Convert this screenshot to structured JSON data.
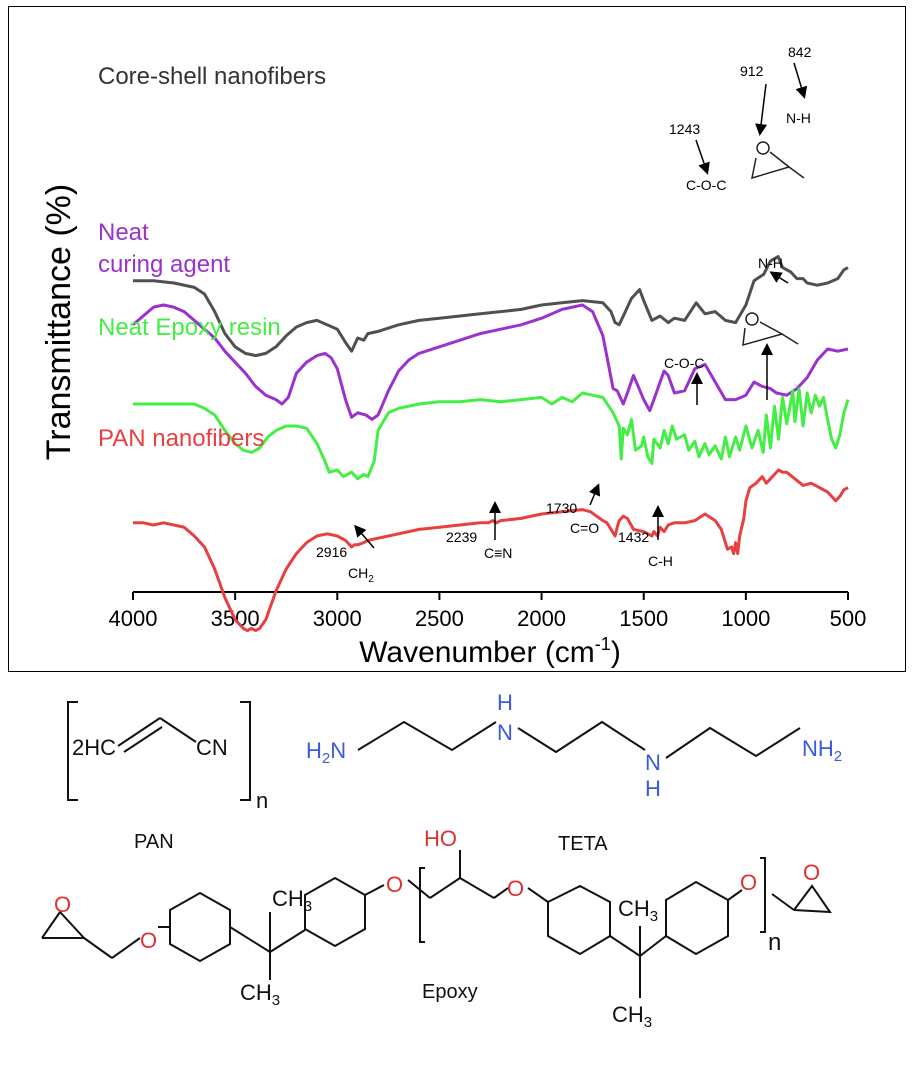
{
  "chart_data": {
    "type": "line",
    "ylabel": "Transmittance (%)",
    "xlabel_main": "Wavenumber (cm",
    "xlabel_sup": "-1",
    "xlabel_close": ")",
    "xlim": [
      4000,
      500
    ],
    "x_reversed": true,
    "xticks": [
      "4000",
      "3500",
      "3000",
      "2500",
      "2000",
      "1500",
      "1000",
      "500"
    ],
    "xtick_values": [
      4000,
      3500,
      3000,
      2500,
      2000,
      1500,
      1000,
      500
    ],
    "series": [
      {
        "name": "Core-shell nanofibers",
        "color": "#505050",
        "x": [
          4000,
          3900,
          3800,
          3700,
          3650,
          3600,
          3550,
          3500,
          3450,
          3400,
          3350,
          3300,
          3250,
          3200,
          3150,
          3100,
          3050,
          3000,
          2960,
          2930,
          2900,
          2870,
          2850,
          2800,
          2700,
          2600,
          2500,
          2400,
          2300,
          2200,
          2100,
          2000,
          1900,
          1800,
          1700,
          1660,
          1640,
          1620,
          1600,
          1560,
          1520,
          1500,
          1460,
          1420,
          1380,
          1350,
          1300,
          1243,
          1200,
          1150,
          1100,
          1050,
          1000,
          960,
          912,
          880,
          842,
          820,
          780,
          750,
          720,
          700,
          650,
          600,
          550,
          520,
          500
        ],
        "y": [
          8.6,
          8.6,
          8.5,
          8.3,
          8.0,
          7.2,
          6.2,
          5.6,
          5.3,
          5.2,
          5.3,
          5.6,
          6.1,
          6.5,
          6.7,
          6.8,
          6.6,
          6.4,
          5.8,
          5.4,
          6.0,
          5.9,
          6.2,
          6.3,
          6.6,
          6.8,
          6.9,
          7.0,
          7.1,
          7.2,
          7.3,
          7.5,
          7.6,
          7.7,
          7.6,
          7.2,
          6.7,
          6.6,
          7.0,
          7.8,
          8.2,
          7.7,
          6.8,
          7.0,
          6.7,
          6.9,
          6.8,
          7.6,
          7.1,
          7.2,
          6.8,
          6.7,
          7.5,
          8.6,
          8.9,
          9.5,
          9.7,
          9.2,
          9.0,
          8.7,
          8.7,
          8.5,
          8.4,
          8.5,
          8.7,
          9.1,
          9.2
        ],
        "label": "Core-shell nanofibers",
        "label_color": "#333333"
      },
      {
        "name": "Neat curing agent",
        "color": "#9a32cd",
        "x": [
          4000,
          3950,
          3900,
          3850,
          3800,
          3750,
          3700,
          3650,
          3600,
          3550,
          3500,
          3450,
          3400,
          3350,
          3300,
          3270,
          3240,
          3200,
          3150,
          3100,
          3060,
          3030,
          3000,
          2960,
          2930,
          2900,
          2860,
          2830,
          2800,
          2750,
          2700,
          2650,
          2600,
          2500,
          2400,
          2300,
          2200,
          2100,
          2000,
          1900,
          1800,
          1750,
          1700,
          1650,
          1630,
          1600,
          1580,
          1550,
          1500,
          1470,
          1450,
          1420,
          1400,
          1380,
          1350,
          1300,
          1250,
          1200,
          1150,
          1100,
          1050,
          1000,
          960,
          920,
          880,
          850,
          800,
          750,
          700,
          650,
          600,
          550,
          500
        ],
        "y": [
          6.6,
          7.0,
          7.4,
          7.5,
          7.4,
          7.2,
          6.8,
          6.4,
          6.0,
          5.4,
          4.9,
          4.4,
          3.8,
          3.4,
          3.2,
          3.0,
          3.3,
          4.4,
          4.9,
          5.2,
          5.3,
          5.1,
          4.6,
          3.2,
          2.4,
          2.6,
          2.5,
          2.3,
          2.5,
          3.6,
          4.5,
          5.0,
          5.3,
          5.6,
          5.9,
          6.2,
          6.4,
          6.6,
          6.9,
          7.3,
          7.5,
          7.2,
          6.1,
          3.7,
          3.6,
          3.0,
          3.5,
          4.3,
          3.2,
          2.7,
          3.2,
          4.0,
          4.5,
          4.3,
          3.5,
          3.6,
          4.6,
          4.8,
          4.0,
          3.2,
          3.2,
          3.4,
          4.0,
          3.8,
          3.7,
          3.5,
          3.4,
          3.7,
          4.2,
          5.0,
          5.5,
          5.4,
          5.5
        ],
        "label_lines": [
          "Neat",
          "curing agent"
        ],
        "label_color": "#9a32cd"
      },
      {
        "name": "Neat Epoxy resin",
        "color": "#44ee44",
        "x": [
          4000,
          3900,
          3800,
          3700,
          3650,
          3600,
          3550,
          3500,
          3460,
          3420,
          3380,
          3340,
          3300,
          3250,
          3200,
          3150,
          3100,
          3060,
          3040,
          3000,
          2970,
          2930,
          2900,
          2870,
          2850,
          2820,
          2800,
          2750,
          2700,
          2650,
          2600,
          2500,
          2400,
          2300,
          2200,
          2100,
          2000,
          1950,
          1900,
          1850,
          1800,
          1750,
          1700,
          1650,
          1620,
          1610,
          1600,
          1580,
          1560,
          1540,
          1510,
          1500,
          1480,
          1460,
          1450,
          1420,
          1400,
          1380,
          1360,
          1340,
          1300,
          1280,
          1250,
          1230,
          1200,
          1180,
          1150,
          1120,
          1100,
          1080,
          1050,
          1030,
          1000,
          970,
          940,
          915,
          900,
          880,
          860,
          840,
          820,
          800,
          770,
          760,
          740,
          720,
          700,
          680,
          660,
          640,
          620,
          600,
          580,
          560,
          540,
          520,
          500
        ],
        "y": [
          3.0,
          3.0,
          3.0,
          3.0,
          2.8,
          2.5,
          1.8,
          1.2,
          0.9,
          0.8,
          1.0,
          1.5,
          1.8,
          2.0,
          2.0,
          1.9,
          1.2,
          0.4,
          -0.1,
          0.0,
          -0.3,
          -0.1,
          -0.4,
          -0.2,
          -0.3,
          0.4,
          1.8,
          2.6,
          2.8,
          2.9,
          3.0,
          3.1,
          3.1,
          3.2,
          3.1,
          3.2,
          3.3,
          3.0,
          3.3,
          3.1,
          3.5,
          3.4,
          3.3,
          2.6,
          2.0,
          0.5,
          1.9,
          1.6,
          2.3,
          0.9,
          1.1,
          1.5,
          0.6,
          0.3,
          1.4,
          1.0,
          1.8,
          1.2,
          2.0,
          1.4,
          1.6,
          0.9,
          1.3,
          0.6,
          1.2,
          0.7,
          1.1,
          0.5,
          1.5,
          0.6,
          1.5,
          0.9,
          2.0,
          1.0,
          1.8,
          0.8,
          2.5,
          1.0,
          2.9,
          1.4,
          3.3,
          2.1,
          3.6,
          2.2,
          3.7,
          2.0,
          3.5,
          2.6,
          3.4,
          2.9,
          3.3,
          2.3,
          1.4,
          1.0,
          1.6,
          2.6,
          3.2
        ],
        "label": "Neat Epoxy resin",
        "label_color": "#44ee44"
      },
      {
        "name": "PAN nanofibers",
        "color": "#e84040",
        "x": [
          4000,
          3950,
          3900,
          3850,
          3800,
          3750,
          3700,
          3650,
          3600,
          3550,
          3500,
          3460,
          3440,
          3420,
          3400,
          3380,
          3350,
          3300,
          3250,
          3200,
          3150,
          3100,
          3050,
          3000,
          2960,
          2930,
          2916,
          2900,
          2870,
          2850,
          2800,
          2700,
          2600,
          2500,
          2400,
          2300,
          2260,
          2239,
          2220,
          2200,
          2100,
          2000,
          1900,
          1800,
          1760,
          1730,
          1700,
          1680,
          1660,
          1640,
          1630,
          1620,
          1600,
          1580,
          1550,
          1500,
          1460,
          1450,
          1432,
          1420,
          1400,
          1380,
          1350,
          1300,
          1250,
          1200,
          1150,
          1120,
          1100,
          1090,
          1070,
          1060,
          1050,
          1040,
          1030,
          1010,
          1000,
          980,
          950,
          920,
          900,
          880,
          860,
          840,
          820,
          800,
          760,
          720,
          680,
          640,
          600,
          560,
          540,
          520,
          500
        ],
        "y": [
          -2.4,
          -2.4,
          -2.5,
          -2.4,
          -2.5,
          -2.6,
          -3.0,
          -3.5,
          -4.5,
          -5.8,
          -6.8,
          -7.2,
          -7.3,
          -7.2,
          -7.3,
          -7.2,
          -6.8,
          -5.5,
          -4.5,
          -3.8,
          -3.3,
          -3.0,
          -2.9,
          -3.0,
          -3.2,
          -3.5,
          -3.4,
          -3.4,
          -3.3,
          -3.2,
          -3.1,
          -2.9,
          -2.7,
          -2.6,
          -2.5,
          -2.4,
          -2.4,
          -2.3,
          -2.4,
          -2.3,
          -2.2,
          -2.0,
          -1.9,
          -1.8,
          -1.9,
          -2.1,
          -2.3,
          -2.4,
          -2.7,
          -3.0,
          -2.6,
          -2.3,
          -2.1,
          -2.2,
          -2.7,
          -2.8,
          -3.0,
          -2.8,
          -3.0,
          -2.6,
          -2.8,
          -2.5,
          -2.4,
          -2.4,
          -2.3,
          -2.0,
          -2.3,
          -2.7,
          -3.3,
          -3.6,
          -3.5,
          -3.8,
          -3.3,
          -3.8,
          -3.0,
          -2.2,
          -1.4,
          -0.8,
          -0.6,
          -0.3,
          -0.6,
          -0.4,
          -0.2,
          0.0,
          -0.1,
          -0.1,
          -0.4,
          -0.7,
          -0.6,
          -0.8,
          -1.0,
          -1.4,
          -1.2,
          -0.9,
          -0.8
        ],
        "label": "PAN nanofibers",
        "label_color": "#e84040"
      }
    ],
    "annotations": [
      {
        "text": "1243"
      },
      {
        "text": "C-O-C"
      },
      {
        "text": "912"
      },
      {
        "text": "842"
      },
      {
        "text": "N-H"
      },
      {
        "text": "N-H"
      },
      {
        "text": "C-O-C"
      },
      {
        "text": "2916"
      },
      {
        "text": "CH"
      },
      {
        "text": "2"
      },
      {
        "text": "2239"
      },
      {
        "text": "C≡N"
      },
      {
        "text": "1730"
      },
      {
        "text": "C=O"
      },
      {
        "text": "1432"
      },
      {
        "text": "C-H"
      }
    ]
  },
  "structures": {
    "pan": {
      "label": "PAN",
      "left": "2HC",
      "right": "CN",
      "subscript": "n"
    },
    "teta": {
      "label": "TETA",
      "nh2_left": "H2N",
      "nh_top": "H",
      "n1": "N",
      "n2": "N",
      "nh_bottom": "H",
      "nh2_right": "NH2"
    },
    "epoxy": {
      "label": "Epoxy",
      "o": "O",
      "ho": "HO",
      "ch3": "CH3",
      "n": "n"
    }
  }
}
